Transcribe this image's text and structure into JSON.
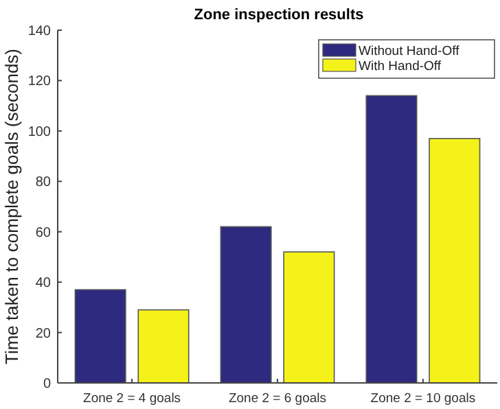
{
  "chart_data": {
    "type": "bar",
    "title": "Zone inspection results",
    "ylabel": "Time taken to complete goals (seconds)",
    "categories": [
      "Zone 2 = 4 goals",
      "Zone 2 = 6 goals",
      "Zone 2 = 10 goals"
    ],
    "series": [
      {
        "name": "Without Hand-Off",
        "color": "#2e2a80",
        "values": [
          37,
          62,
          114
        ]
      },
      {
        "name": "With Hand-Off",
        "color": "#f5f21a",
        "values": [
          29,
          52,
          97
        ]
      }
    ],
    "ylim": [
      0,
      140
    ],
    "yticks": [
      0,
      20,
      40,
      60,
      80,
      100,
      120,
      140
    ],
    "grid": false,
    "legend": "top right"
  }
}
